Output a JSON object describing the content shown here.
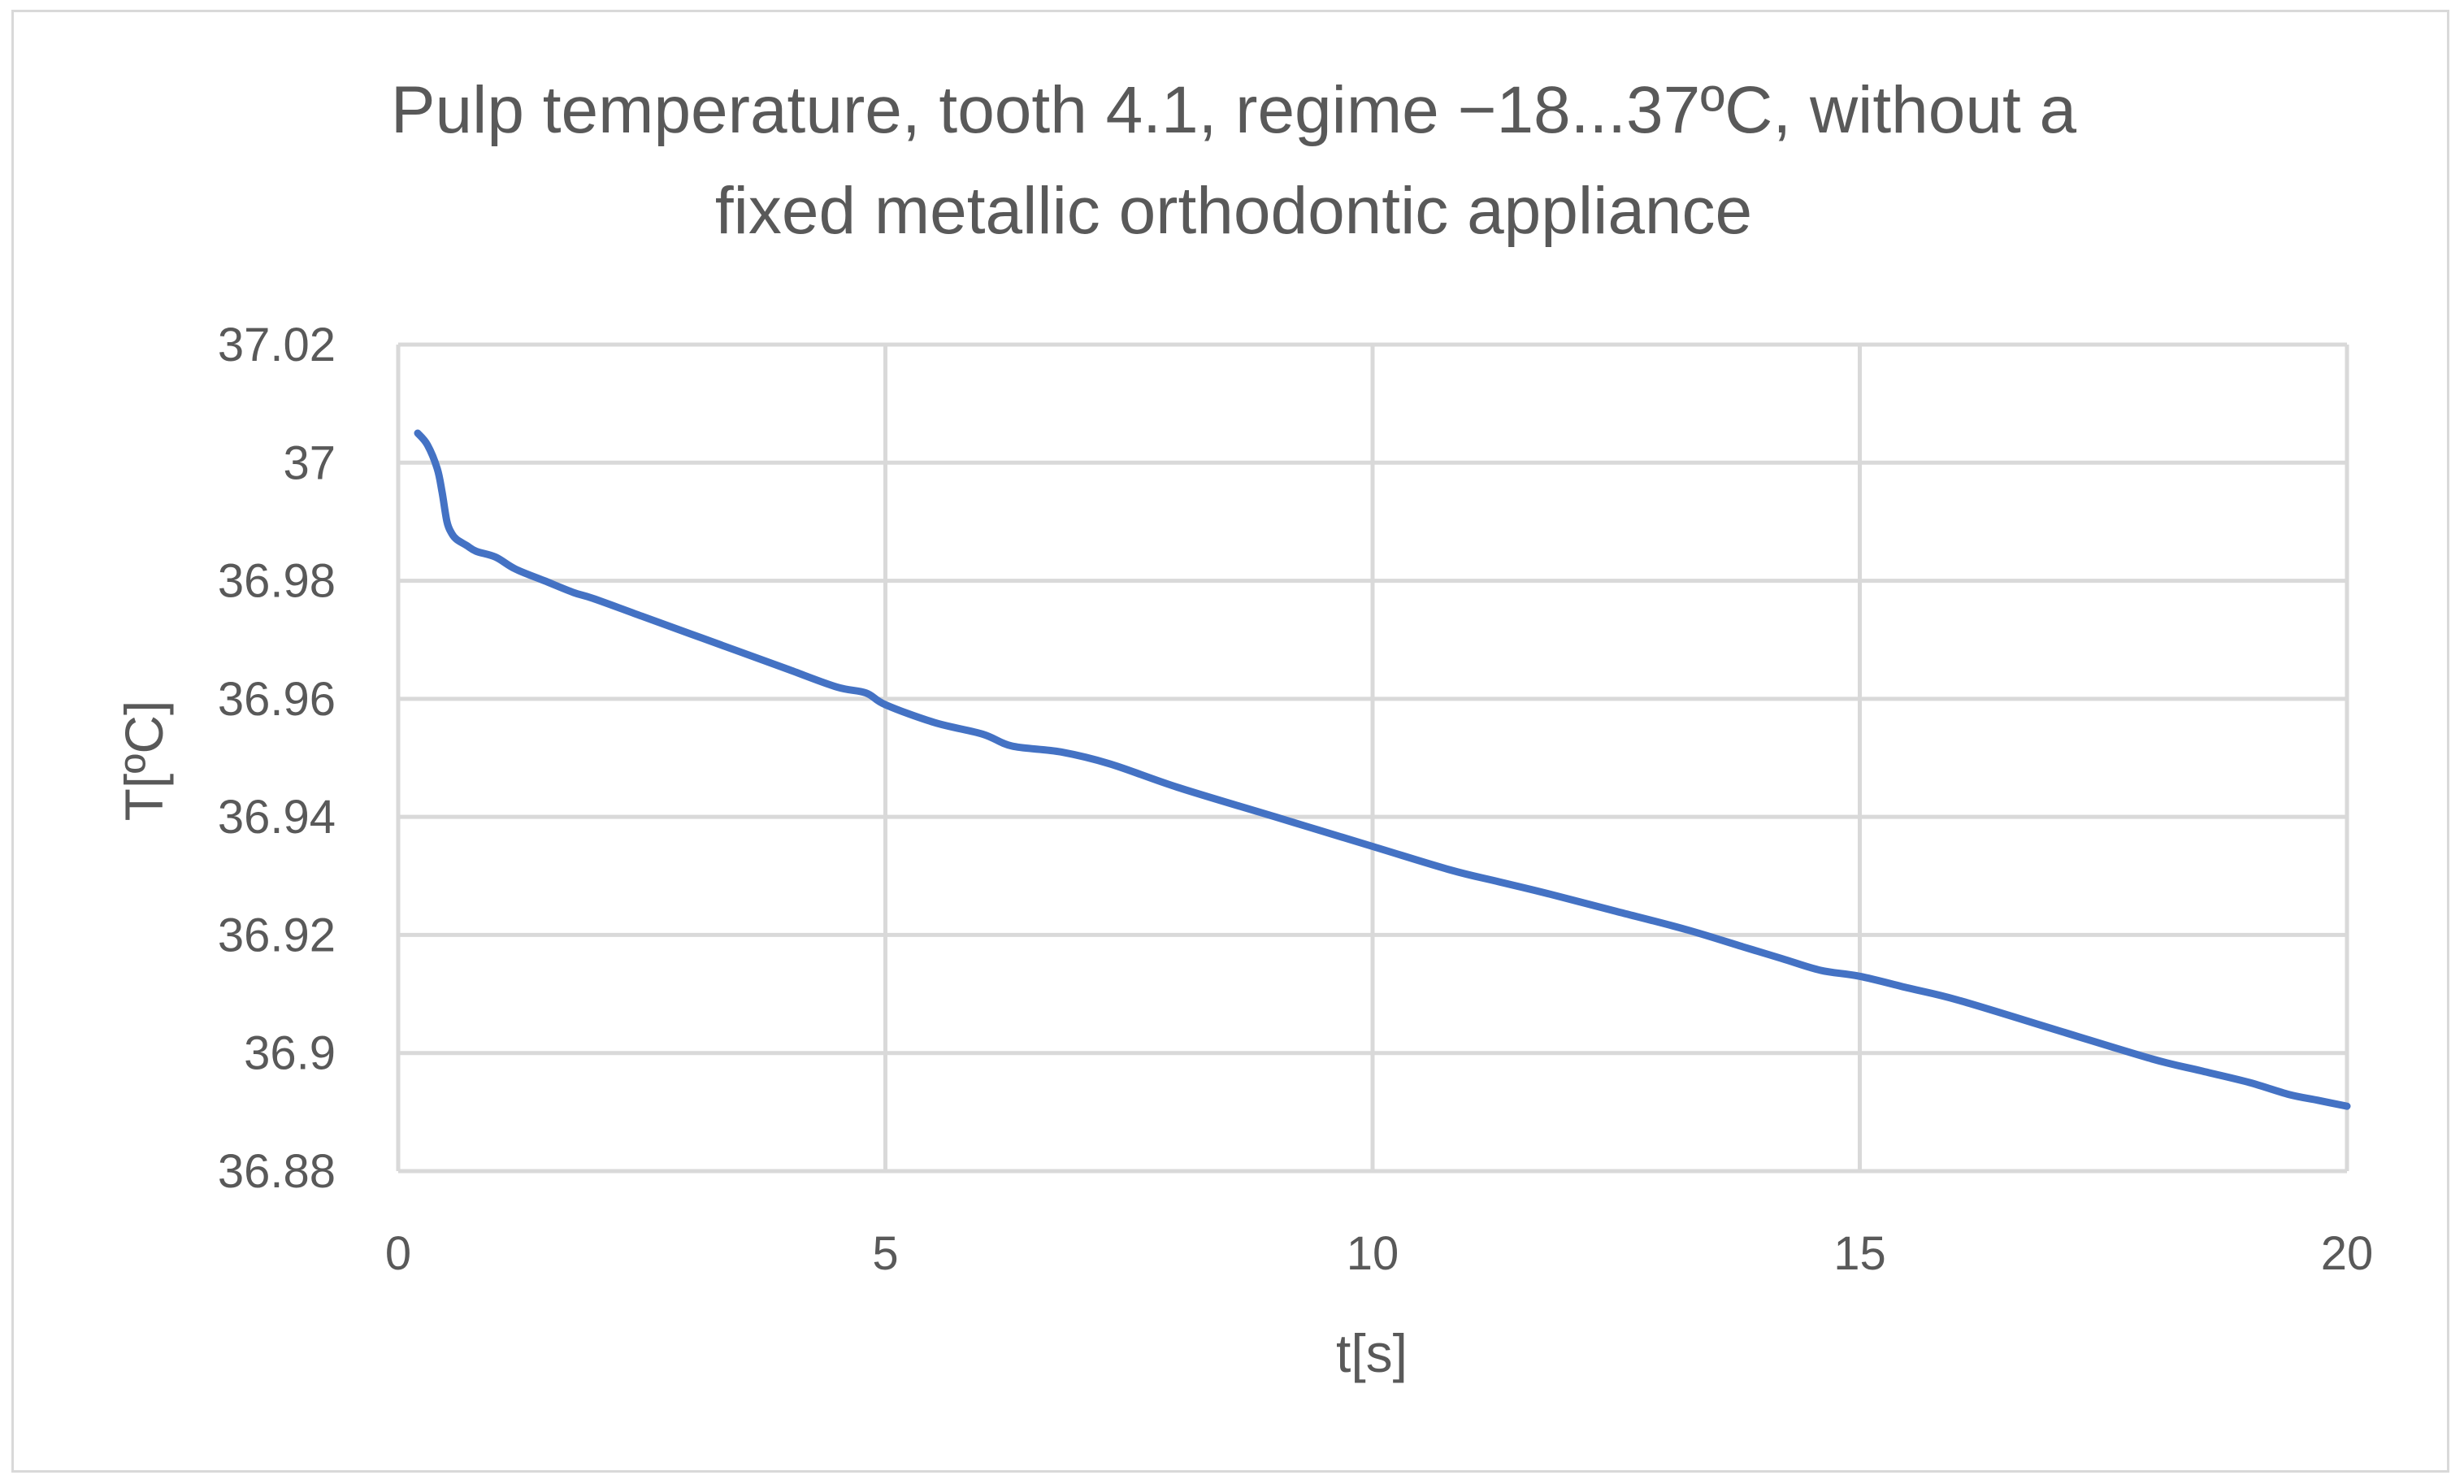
{
  "chart_data": {
    "type": "line",
    "title_line1": "Pulp temperature, tooth 4.1, regime −18...37ºC, without a",
    "title_line2": "fixed metallic orthodontic appliance",
    "xlabel": "t[s]",
    "ylabel": "T[ºC]",
    "xlim": [
      0,
      20
    ],
    "ylim": [
      36.88,
      37.02
    ],
    "x_ticks": [
      "0",
      "5",
      "10",
      "15",
      "20"
    ],
    "y_ticks": [
      "36.88",
      "36.9",
      "36.92",
      "36.94",
      "36.96",
      "36.98",
      "37",
      "37.02"
    ],
    "grid": true,
    "line_color": "#4472c4",
    "grid_color": "#d9d9d9",
    "series": [
      {
        "x": [
          0.2,
          0.3,
          0.4,
          0.45,
          0.5,
          0.55,
          0.6,
          0.7,
          0.8,
          1.0,
          1.2,
          1.5,
          1.8,
          2.0,
          2.5,
          3.0,
          3.5,
          4.0,
          4.5,
          4.8,
          5.0,
          5.5,
          6.0,
          6.3,
          6.8,
          7.3,
          8.0,
          9.0,
          10.0,
          10.8,
          11.3,
          11.8,
          12.5,
          13.2,
          13.8,
          14.2,
          14.6,
          15.0,
          15.5,
          16.0,
          17.0,
          18.0,
          18.5,
          19.0,
          19.4,
          19.7,
          20.0
        ],
        "y": [
          37.005,
          37.003,
          36.999,
          36.995,
          36.99,
          36.988,
          36.987,
          36.986,
          36.985,
          36.984,
          36.982,
          36.98,
          36.978,
          36.977,
          36.974,
          36.971,
          36.968,
          36.965,
          36.962,
          36.961,
          36.959,
          36.956,
          36.954,
          36.952,
          36.951,
          36.949,
          36.945,
          36.94,
          36.935,
          36.931,
          36.929,
          36.927,
          36.924,
          36.921,
          36.918,
          36.916,
          36.914,
          36.913,
          36.911,
          36.909,
          36.904,
          36.899,
          36.897,
          36.895,
          36.893,
          36.892,
          36.891
        ]
      }
    ]
  }
}
